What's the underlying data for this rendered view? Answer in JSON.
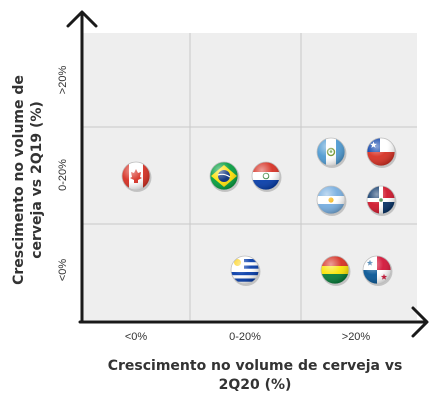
{
  "chart_data": {
    "type": "scatter",
    "xlabel": "Crescimento no volume de cerveja vs 2Q20 (%)",
    "ylabel": "Crescimento no volume de cerveja vs 2Q19 (%)",
    "x_categories": [
      "<0%",
      "0-20%",
      ">20%"
    ],
    "y_categories": [
      "<0%",
      "0-20%",
      ">20%"
    ],
    "grid": true,
    "points": [
      {
        "label": "Canadá",
        "icon": "canada-flag-icon",
        "x": "<0%",
        "y": "0-20%"
      },
      {
        "label": "Brasil",
        "icon": "brazil-flag-icon",
        "x": "0-20%",
        "y": "0-20%"
      },
      {
        "label": "Paraguai",
        "icon": "paraguay-flag-icon",
        "x": "0-20%",
        "y": "0-20%"
      },
      {
        "label": "Uruguai",
        "icon": "uruguay-flag-icon",
        "x": "0-20%",
        "y": "<0%"
      },
      {
        "label": "Guatemala",
        "icon": "guatemala-flag-icon",
        "x": ">20%",
        "y": "0-20%"
      },
      {
        "label": "Chile",
        "icon": "chile-flag-icon",
        "x": ">20%",
        "y": "0-20%"
      },
      {
        "label": "Argentina",
        "icon": "argentina-flag-icon",
        "x": ">20%",
        "y": "0-20%"
      },
      {
        "label": "República Dominicana",
        "icon": "dominican-republic-flag-icon",
        "x": ">20%",
        "y": "0-20%"
      },
      {
        "label": "Bolívia",
        "icon": "bolivia-flag-icon",
        "x": ">20%",
        "y": "<0%"
      },
      {
        "label": "Panamá",
        "icon": "panama-flag-icon",
        "x": ">20%",
        "y": "<0%"
      }
    ]
  },
  "colors": {
    "plot_background": "#eeeeee",
    "grid": "#c8c8c8",
    "axis": "#1a1a1a",
    "text": "#333333"
  }
}
